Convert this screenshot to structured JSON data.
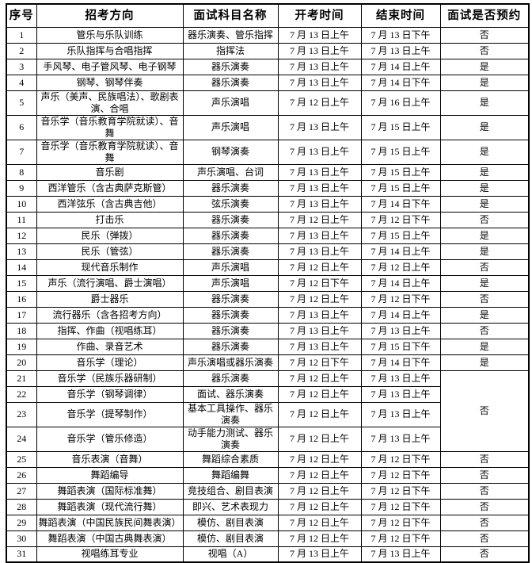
{
  "page": {
    "background_color": "#ffffff",
    "border_color": "#000000",
    "text_color": "#000000"
  },
  "table": {
    "headers": [
      "序号",
      "招考方向",
      "面试科目名称",
      "开考时间",
      "结束时间",
      "面试是否预约"
    ],
    "rows": [
      {
        "no": "1",
        "direction": "管乐与乐队训练",
        "subject": "器乐演奏、管乐指挥",
        "start": "7 月 13 日上午",
        "end": "7 月 13 日下午",
        "appt": "否"
      },
      {
        "no": "2",
        "direction": "乐队指挥与合唱指挥",
        "subject": "指挥法",
        "start": "7 月 13 日上午",
        "end": "7 月 13 日上午",
        "appt": "否"
      },
      {
        "no": "3",
        "direction": "手风琴、电子管风琴、电子钢琴",
        "subject": "器乐演奏",
        "start": "7 月 13 日上午",
        "end": "7 月 14 日上午",
        "appt": "是"
      },
      {
        "no": "4",
        "direction": "钢琴、钢琴伴奏",
        "subject": "器乐演奏",
        "start": "7 月 13 日上午",
        "end": "7 月 14 日下午",
        "appt": "是"
      },
      {
        "no": "5",
        "direction": "声乐（美声、民族唱法）、歌剧表演、合唱",
        "subject": "声乐演唱",
        "start": "7 月 12 日上午",
        "end": "7 月 16 日上午",
        "appt": "是"
      },
      {
        "no": "6",
        "direction": "音乐学（音乐教育学院就读）、音舞",
        "subject": "声乐演唱",
        "start": "7 月 13 日上午",
        "end": "7 月 15 日上午",
        "appt": "是"
      },
      {
        "no": "7",
        "direction": "音乐学（音乐教育学院就读）、音舞",
        "subject": "钢琴演奏",
        "start": "7 月 13 日上午",
        "end": "7 月 15 日上午",
        "appt": "是"
      },
      {
        "no": "8",
        "direction": "音乐剧",
        "subject": "声乐演唱、台词",
        "start": "7 月 13 日上午",
        "end": "7 月 15 日上午",
        "appt": "是"
      },
      {
        "no": "9",
        "direction": "西洋管乐（含古典萨克斯管）",
        "subject": "器乐演奏",
        "start": "7 月 13 日上午",
        "end": "7 月 15 日上午",
        "appt": "是"
      },
      {
        "no": "10",
        "direction": "西洋弦乐（含古典吉他）",
        "subject": "弦乐演奏",
        "start": "7 月 13 日上午",
        "end": "7 月 14 日下午",
        "appt": "是"
      },
      {
        "no": "11",
        "direction": "打击乐",
        "subject": "器乐演奏",
        "start": "7 月 12 日上午",
        "end": "7 月 12 日下午",
        "appt": "否"
      },
      {
        "no": "12",
        "direction": "民乐（弹拨）",
        "subject": "器乐演奏",
        "start": "7 月 13 日上午",
        "end": "7 月 15 日上午",
        "appt": "是"
      },
      {
        "no": "13",
        "direction": "民乐（管弦）",
        "subject": "器乐演奏",
        "start": "7 月 13 日上午",
        "end": "7 月 14 日上午",
        "appt": "是"
      },
      {
        "no": "14",
        "direction": "现代音乐制作",
        "subject": "声乐演唱",
        "start": "7 月 12 日上午",
        "end": "7 月 12 日上午",
        "appt": "否"
      },
      {
        "no": "15",
        "direction": "声乐（流行演唱、爵士演唱）",
        "subject": "声乐演唱",
        "start": "7 月 12 日下午",
        "end": "7 月 14 日上午",
        "appt": "是"
      },
      {
        "no": "16",
        "direction": "爵士器乐",
        "subject": "器乐演奏",
        "start": "7 月 12 日上午",
        "end": "7 月 12 日下午",
        "appt": "否"
      },
      {
        "no": "17",
        "direction": "流行器乐（含各招考方向）",
        "subject": "器乐演奏",
        "start": "7 月 13 日上午",
        "end": "7 月 14 日上午",
        "appt": "是"
      },
      {
        "no": "18",
        "direction": "指挥、作曲（视唱练耳）",
        "subject": "器乐演奏",
        "start": "7 月 13 日上午",
        "end": "7 月 13 日上午",
        "appt": "否"
      },
      {
        "no": "19",
        "direction": "作曲、录音艺术",
        "subject": "器乐演奏",
        "start": "7 月 13 日上午",
        "end": "7 月 15 日下午",
        "appt": "是"
      },
      {
        "no": "20",
        "direction": "音乐学（理论）",
        "subject": "声乐演唱或器乐演奏",
        "start": "7 月 12 日下午",
        "end": "7 月 14 日下午",
        "appt": "是"
      },
      {
        "no": "21",
        "direction": "音乐学（民族乐器研制）",
        "subject": "器乐演奏",
        "start": "7 月 12 日上午",
        "end": "7 月 13 日上午",
        "appt": "否",
        "appt_rowspan": 4
      },
      {
        "no": "22",
        "direction": "音乐学（钢琴调律）",
        "subject": "面试、器乐演奏",
        "start": "7 月 12 日上午",
        "end": "7 月 13 日上午",
        "appt": null
      },
      {
        "no": "23",
        "direction": "音乐学（提琴制作）",
        "subject": "基本工具操作、器乐演奏",
        "start": "7 月 12 日上午",
        "end": "7 月 13 日上午",
        "appt": null
      },
      {
        "no": "24",
        "direction": "音乐学（管乐修造）",
        "subject": "动手能力测试、器乐演奏",
        "start": "7 月 12 日上午",
        "end": "7 月 13 日上午",
        "appt": null
      },
      {
        "no": "25",
        "direction": "音乐表演（音舞）",
        "subject": "舞蹈综合素质",
        "start": "7 月 12 日上午",
        "end": "7 月 12 日下午",
        "appt": "否"
      },
      {
        "no": "26",
        "direction": "舞蹈编导",
        "subject": "舞蹈编舞",
        "start": "7 月 12 日上午",
        "end": "7 月 12 日下午",
        "appt": "否"
      },
      {
        "no": "27",
        "direction": "舞蹈表演（国际标准舞）",
        "subject": "竞技组合、剧目表演",
        "start": "7 月 12 日上午",
        "end": "7 月 12 日下午",
        "appt": "否"
      },
      {
        "no": "28",
        "direction": "舞蹈表演（现代流行舞）",
        "subject": "即兴、艺术表现力",
        "start": "7 月 12 日上午",
        "end": "7 月 12 日下午",
        "appt": "否"
      },
      {
        "no": "29",
        "direction": "舞蹈表演（中国民族民间舞表演）",
        "subject": "模仿、剧目表演",
        "start": "7 月 12 日上午",
        "end": "7 月 12 日下午",
        "appt": "否"
      },
      {
        "no": "30",
        "direction": "舞蹈表演（中国古典舞表演）",
        "subject": "模仿、剧目表演",
        "start": "7 月 12 日上午",
        "end": "7 月 12 日下午",
        "appt": "否"
      },
      {
        "no": "31",
        "direction": "视唱练耳专业",
        "subject": "视唱（A）",
        "start": "7 月 13 日上午",
        "end": "7 月 13 日上午",
        "appt": "否"
      }
    ]
  }
}
